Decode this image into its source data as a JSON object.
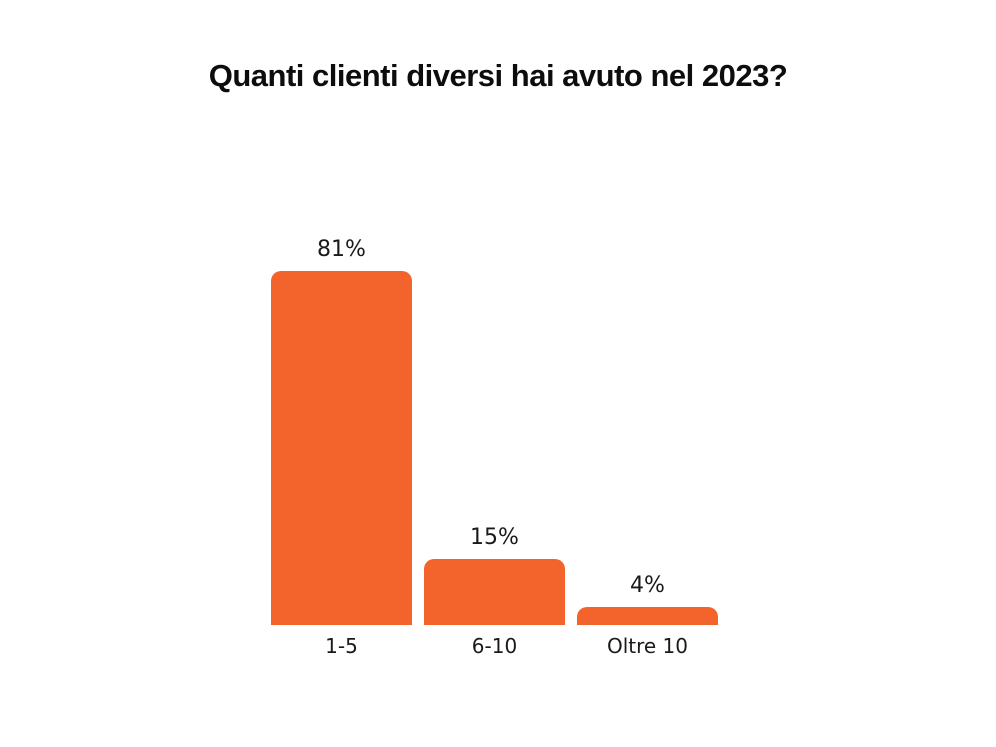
{
  "page": {
    "title": "Quanti clienti diversi hai avuto nel 2023?"
  },
  "chart_data": {
    "type": "bar",
    "title": "Quanti clienti diversi hai avuto nel 2023?",
    "categories": [
      "1-5",
      "6-10",
      "Oltre 10"
    ],
    "values": [
      81,
      15,
      4
    ],
    "value_labels": [
      "81%",
      "15%",
      "4%"
    ],
    "xlabel": "",
    "ylabel": "",
    "ylim": [
      0,
      100
    ],
    "grid": false,
    "legend": "none",
    "axes_shown": false,
    "bar_color": "#F2642B",
    "title_color": "#0d0d0d",
    "label_color": "#1a1a1a",
    "background_color": "#ffffff"
  }
}
